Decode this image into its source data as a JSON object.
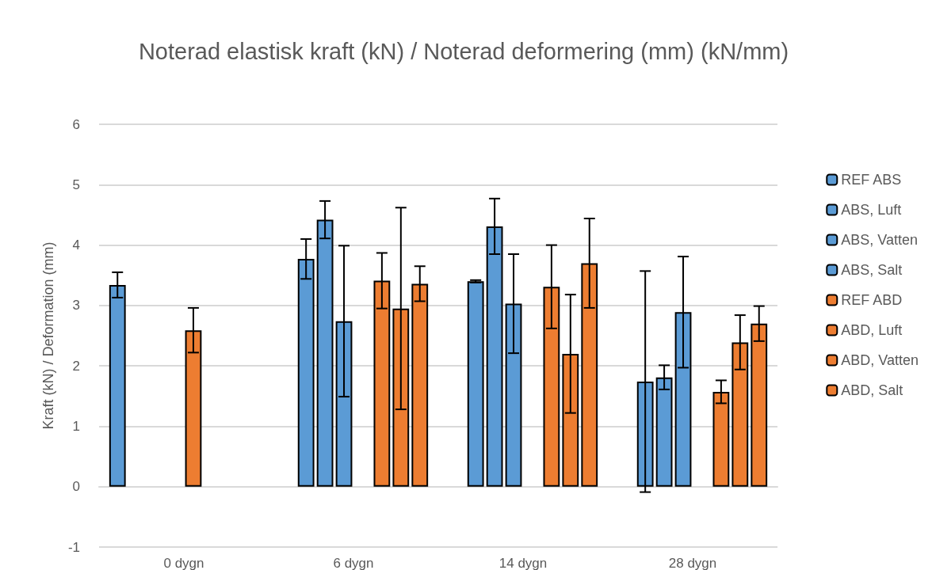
{
  "chart_data": {
    "type": "bar",
    "title": "Noterad elastisk kraft (kN) / Noterad deformering (mm) (kN/mm)",
    "ylabel": "Kraft (kN) / Deformation (mm)",
    "categories": [
      "0 dygn",
      "6 dygn",
      "14 dygn",
      "28 dygn"
    ],
    "series": [
      {
        "name": "REF ABS",
        "color": "#5b9bd5",
        "values": [
          3.34,
          null,
          null,
          null
        ],
        "errors": [
          0.21,
          null,
          null,
          null
        ]
      },
      {
        "name": "ABS, Luft",
        "color": "#5b9bd5",
        "values": [
          null,
          3.77,
          3.4,
          1.74
        ],
        "errors": [
          null,
          0.33,
          0.02,
          1.83
        ]
      },
      {
        "name": "ABS, Vatten",
        "color": "#5b9bd5",
        "values": [
          null,
          4.42,
          4.31,
          1.81
        ],
        "errors": [
          null,
          0.31,
          0.46,
          0.2
        ]
      },
      {
        "name": "ABS, Salt",
        "color": "#5b9bd5",
        "values": [
          null,
          2.74,
          3.03,
          2.89
        ],
        "errors": [
          null,
          1.25,
          0.82,
          0.92
        ]
      },
      {
        "name": "REF ABD",
        "color": "#ed7d31",
        "values": [
          2.59,
          null,
          null,
          null
        ],
        "errors": [
          0.37,
          null,
          null,
          null
        ]
      },
      {
        "name": "ABD, Luft",
        "color": "#ed7d31",
        "values": [
          null,
          3.41,
          3.31,
          1.57
        ],
        "errors": [
          null,
          0.46,
          0.69,
          0.19
        ]
      },
      {
        "name": "ABD, Vatten",
        "color": "#ed7d31",
        "values": [
          null,
          2.95,
          2.2,
          2.39
        ],
        "errors": [
          null,
          1.67,
          0.98,
          0.45
        ]
      },
      {
        "name": "ABD, Salt",
        "color": "#ed7d31",
        "values": [
          null,
          3.36,
          3.7,
          2.7
        ],
        "errors": [
          null,
          0.29,
          0.74,
          0.29
        ]
      }
    ],
    "ylim": [
      -1,
      6
    ],
    "yticks": [
      -1,
      0,
      1,
      2,
      3,
      4,
      5,
      6
    ],
    "grid": "y",
    "legend": "right"
  }
}
